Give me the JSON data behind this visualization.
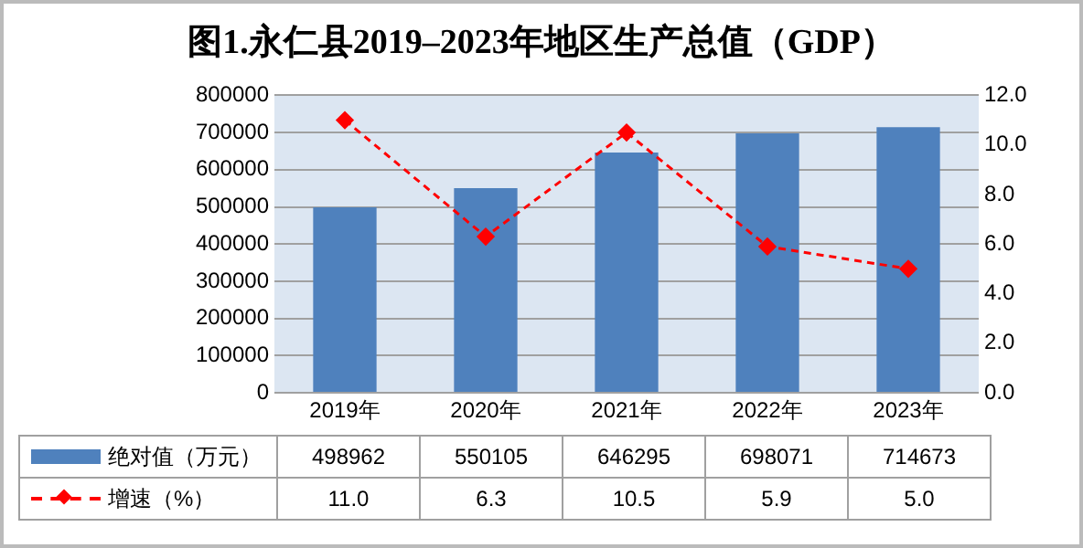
{
  "chart_data": {
    "type": "bar",
    "title": "图1.永仁县2019–2023年地区生产总值（GDP）",
    "categories": [
      "2019年",
      "2020年",
      "2021年",
      "2022年",
      "2023年"
    ],
    "series": [
      {
        "name": "绝对值（万元）",
        "color": "#4f81bd",
        "values": [
          498962,
          550105,
          646295,
          698071,
          714673
        ],
        "value_labels": [
          "498962",
          "550105",
          "646295",
          "698071",
          "714673"
        ]
      },
      {
        "name": "增速（%）",
        "type": "line",
        "axis": "y2",
        "color": "#ff0000",
        "values": [
          11.0,
          6.3,
          10.5,
          5.9,
          5.0
        ],
        "value_labels": [
          "11.0",
          "6.3",
          "10.5",
          "5.9",
          "5.0"
        ]
      }
    ],
    "ylim": [
      0,
      800000
    ],
    "yticks": [
      0,
      100000,
      200000,
      300000,
      400000,
      500000,
      600000,
      700000,
      800000
    ],
    "y2lim": [
      0,
      12
    ],
    "y2ticks": [
      {
        "value": 0,
        "label": "0.0"
      },
      {
        "value": 2,
        "label": "2.0"
      },
      {
        "value": 4,
        "label": "4.0"
      },
      {
        "value": 6,
        "label": "6.0"
      },
      {
        "value": 8,
        "label": "8.0"
      },
      {
        "value": 10,
        "label": "10.0"
      },
      {
        "value": 12,
        "label": "12.0"
      }
    ],
    "grid": "y",
    "legend": "bottom",
    "marker": "diamond",
    "line_style": "dashed"
  }
}
